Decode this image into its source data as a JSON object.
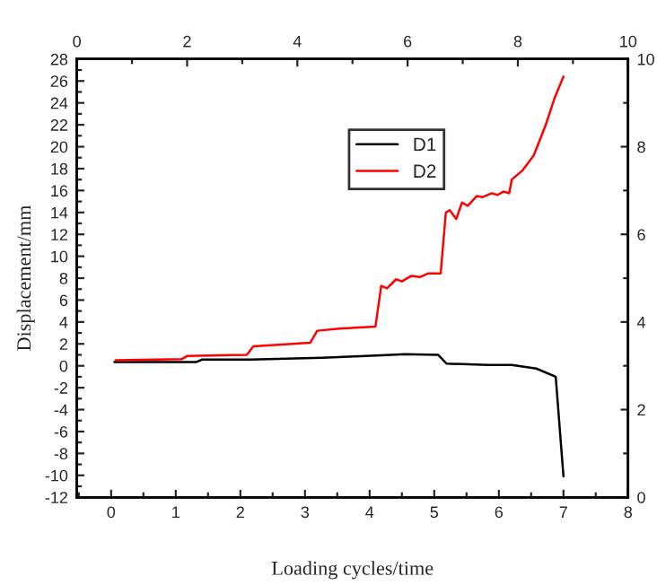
{
  "chart_data": {
    "type": "line",
    "xlabel": "Loading cycles/time",
    "ylabel": "Displacement/mm",
    "xlim": [
      -0.53,
      8
    ],
    "xticks": [
      0,
      1,
      2,
      3,
      4,
      5,
      6,
      7,
      8
    ],
    "ylim": [
      -12,
      28
    ],
    "yticks": [
      -12,
      -10,
      -8,
      -6,
      -4,
      -2,
      0,
      2,
      4,
      6,
      8,
      10,
      12,
      14,
      16,
      18,
      20,
      22,
      24,
      26,
      28
    ],
    "x2lim": [
      0,
      10
    ],
    "x2ticks": [
      0,
      2,
      4,
      6,
      8,
      10
    ],
    "y2lim": [
      0,
      10
    ],
    "y2ticks": [
      0,
      2,
      4,
      6,
      8,
      10
    ],
    "grid": false,
    "legend": "top",
    "marker": "none",
    "line_style": "solid",
    "series": [
      {
        "name": "D1",
        "color": "#000000",
        "x": [
          0.05,
          1.32,
          1.41,
          2.15,
          3.26,
          4.18,
          4.55,
          5.06,
          5.19,
          5.83,
          6.2,
          6.58,
          6.88,
          7.0
        ],
        "values": [
          0.35,
          0.35,
          0.57,
          0.57,
          0.73,
          0.95,
          1.06,
          1.0,
          0.2,
          0.07,
          0.07,
          -0.25,
          -1.0,
          -10.1
        ]
      },
      {
        "name": "D2",
        "color": "#ff0000",
        "x": [
          0.07,
          1.09,
          1.18,
          2.1,
          2.2,
          3.08,
          3.19,
          3.53,
          4.09,
          4.18,
          4.27,
          4.41,
          4.5,
          4.64,
          4.78,
          4.91,
          5.1,
          5.18,
          5.24,
          5.34,
          5.43,
          5.52,
          5.66,
          5.75,
          5.89,
          5.98,
          6.07,
          6.16,
          6.2,
          6.36,
          6.54,
          6.72,
          6.86,
          7.0
        ],
        "values": [
          0.5,
          0.6,
          0.9,
          1.0,
          1.77,
          2.1,
          3.2,
          3.4,
          3.57,
          7.3,
          7.07,
          7.9,
          7.7,
          8.2,
          8.1,
          8.44,
          8.44,
          14.0,
          14.2,
          13.4,
          14.9,
          14.6,
          15.5,
          15.4,
          15.75,
          15.6,
          15.9,
          15.75,
          17.0,
          17.8,
          19.2,
          21.9,
          24.4,
          26.4
        ]
      }
    ]
  }
}
